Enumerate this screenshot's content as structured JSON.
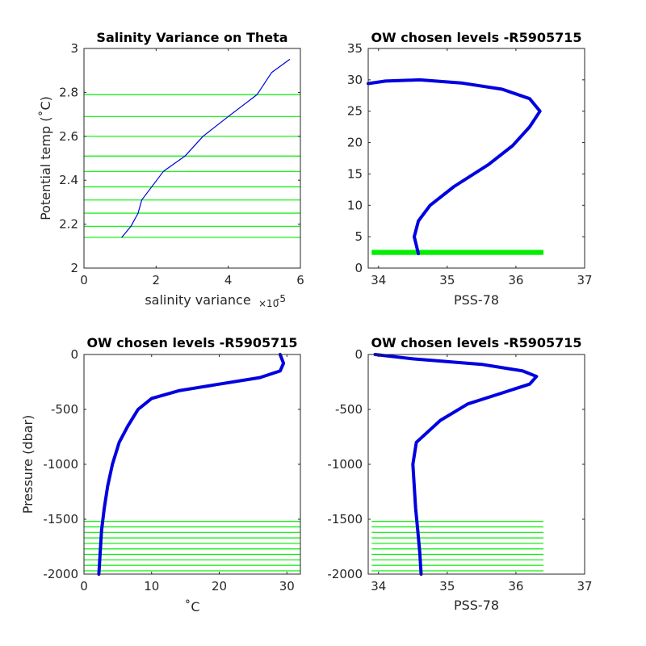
{
  "colors": {
    "profile": "#0000e0",
    "levels": "#00ee00",
    "axis": "#262626"
  },
  "chart_data": [
    {
      "type": "line",
      "title": "Salinity Variance on Theta",
      "xlabel": "salinity variance",
      "x_multiplier": "×10",
      "x_exponent": "-5",
      "ylabel": "Potential temp (˚C)",
      "xlim": [
        0,
        6
      ],
      "ylim": [
        2,
        3
      ],
      "xticks": [
        0,
        2,
        4,
        6
      ],
      "yticks": [
        2,
        2.2,
        2.4,
        2.6,
        2.8,
        3
      ],
      "x": [
        1.05,
        1.3,
        1.5,
        1.6,
        2.2,
        2.8,
        3.3,
        4.0,
        4.8,
        5.2,
        5.7
      ],
      "y": [
        2.14,
        2.19,
        2.25,
        2.31,
        2.44,
        2.51,
        2.6,
        2.69,
        2.79,
        2.89,
        2.95
      ],
      "chosen_levels": [
        2.14,
        2.19,
        2.25,
        2.31,
        2.37,
        2.44,
        2.51,
        2.6,
        2.69,
        2.79
      ]
    },
    {
      "type": "line",
      "title": "OW chosen levels -R5905715",
      "xlabel": "PSS-78",
      "ylabel": "",
      "xlim": [
        33.85,
        37
      ],
      "ylim": [
        0,
        35
      ],
      "xticks": [
        34,
        35,
        36,
        37
      ],
      "yticks": [
        0,
        5,
        10,
        15,
        20,
        25,
        30,
        35
      ],
      "x": [
        34.58,
        34.52,
        34.58,
        34.75,
        35.1,
        35.6,
        35.95,
        36.2,
        36.35,
        36.2,
        35.8,
        35.2,
        34.6,
        34.1,
        33.85
      ],
      "y": [
        2.3,
        5,
        7.5,
        10,
        13,
        16.5,
        19.5,
        22.5,
        25,
        27,
        28.5,
        29.5,
        30,
        29.8,
        29.4
      ],
      "chosen_band": {
        "x_range": [
          33.9,
          36.4
        ],
        "y_range": [
          2.1,
          2.9
        ]
      }
    },
    {
      "type": "line",
      "title": "OW chosen levels -R5905715",
      "xlabel": "˚C",
      "ylabel": "Pressure (dbar)",
      "xlim": [
        0,
        32
      ],
      "ylim": [
        -2000,
        0
      ],
      "xticks": [
        0,
        10,
        20,
        30
      ],
      "yticks": [
        -2000,
        -1500,
        -1000,
        -500,
        0
      ],
      "x": [
        2.2,
        2.4,
        2.6,
        3.0,
        3.5,
        4.2,
        5.2,
        6.5,
        8,
        10,
        14,
        20,
        26,
        29,
        29.5,
        29
      ],
      "y": [
        -2000,
        -1800,
        -1600,
        -1400,
        -1200,
        -1000,
        -800,
        -650,
        -500,
        -400,
        -330,
        -270,
        -210,
        -150,
        -80,
        0
      ],
      "chosen_levels": [
        -1520,
        -1570,
        -1620,
        -1670,
        -1720,
        -1770,
        -1820,
        -1870,
        -1920,
        -1970
      ]
    },
    {
      "type": "line",
      "title": "OW chosen levels -R5905715",
      "xlabel": "PSS-78",
      "ylabel": "",
      "xlim": [
        33.85,
        37
      ],
      "ylim": [
        -2000,
        0
      ],
      "xticks": [
        34,
        35,
        36,
        37
      ],
      "yticks": [
        -2000,
        -1500,
        -1000,
        -500,
        0
      ],
      "x": [
        34.62,
        34.6,
        34.57,
        34.54,
        34.52,
        34.5,
        34.55,
        34.9,
        35.3,
        35.8,
        36.2,
        36.3,
        36.1,
        35.5,
        34.5,
        33.95
      ],
      "y": [
        -2000,
        -1800,
        -1600,
        -1400,
        -1200,
        -1000,
        -800,
        -600,
        -450,
        -350,
        -270,
        -200,
        -150,
        -90,
        -40,
        0
      ],
      "chosen_levels": [
        -1520,
        -1570,
        -1620,
        -1670,
        -1720,
        -1770,
        -1820,
        -1870,
        -1920,
        -1970
      ],
      "level_x_range": [
        33.9,
        36.4
      ]
    }
  ]
}
